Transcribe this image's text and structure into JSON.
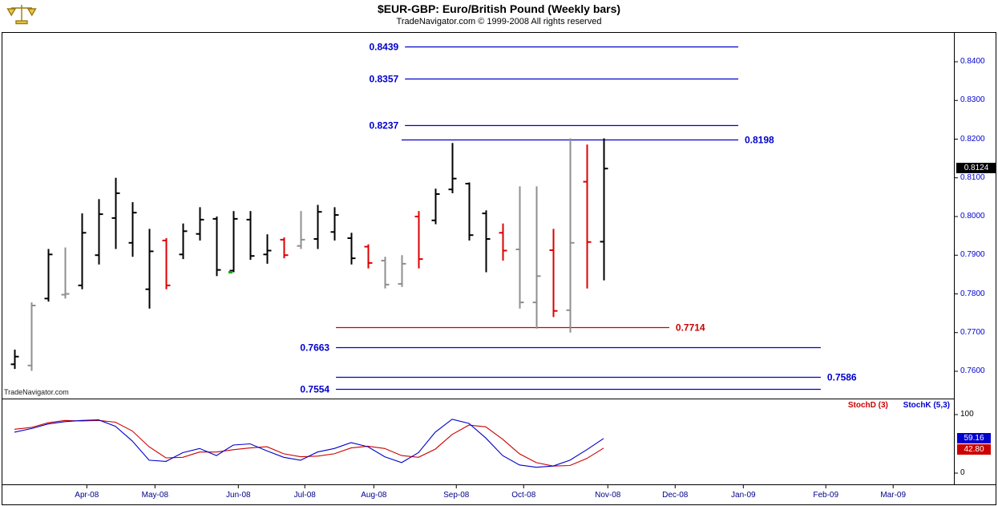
{
  "header": {
    "title": "$EUR-GBP:  Euro/British Pound  (Weekly bars)",
    "subtitle": "TradeNavigator.com © 1999-2008 All rights reserved"
  },
  "watermark": "TradeNavigator.com",
  "price_axis": {
    "text_color": "#0000cc",
    "ticks": [
      "0.8400",
      "0.8300",
      "0.8200",
      "0.8100",
      "0.8000",
      "0.7900",
      "0.7800",
      "0.7700",
      "0.7600"
    ],
    "current_price": "0.8124",
    "current_price_bg": "#000000",
    "current_price_fg": "#ffffff"
  },
  "time_axis": {
    "text_color": "#00008b",
    "labels": [
      {
        "label": "Apr-08",
        "pos": 4.3
      },
      {
        "label": "May-08",
        "pos": 8.35
      },
      {
        "label": "Jun-08",
        "pos": 13.3
      },
      {
        "label": "Jul-08",
        "pos": 17.25
      },
      {
        "label": "Aug-08",
        "pos": 21.35
      },
      {
        "label": "Sep-08",
        "pos": 26.25
      },
      {
        "label": "Oct-08",
        "pos": 30.25
      },
      {
        "label": "Nov-08",
        "pos": 35.25
      },
      {
        "label": "Dec-08",
        "pos": 39.25
      },
      {
        "label": "Jan-09",
        "pos": 43.3
      },
      {
        "label": "Feb-09",
        "pos": 48.2
      },
      {
        "label": "Mar-09",
        "pos": 52.2
      }
    ]
  },
  "indicator_panel": {
    "legend": [
      {
        "label": "StochD (3)",
        "color": "#cc0000"
      },
      {
        "label": "StochK (5,3)",
        "color": "#0000cc"
      }
    ],
    "axis_ticks": [
      "100",
      "0"
    ],
    "value_boxes": [
      {
        "series": "StochK",
        "value": "59.16",
        "bg": "#0000cc"
      },
      {
        "series": "StochD",
        "value": "42.80",
        "bg": "#cc0000"
      }
    ]
  },
  "chart_data": [
    {
      "type": "bar",
      "subtype": "ohlc-bars",
      "title": "$EUR-GBP Euro/British Pound (Weekly bars)",
      "timeframe": "weekly",
      "ylim": [
        0.753,
        0.8477
      ],
      "yticks": [
        0.84,
        0.83,
        0.82,
        0.81,
        0.8,
        0.79,
        0.78,
        0.77,
        0.76
      ],
      "last_price": 0.8124,
      "palette": {
        "black": "#000000",
        "red": "#dd0000",
        "gray": "#8f8f8f"
      },
      "bars_format": [
        "open",
        "high",
        "low",
        "close",
        "color"
      ],
      "bars": [
        [
          0.7618,
          0.7656,
          0.7606,
          0.7638,
          "black"
        ],
        [
          0.7615,
          0.7778,
          0.7601,
          0.777,
          "gray"
        ],
        [
          0.7788,
          0.7916,
          0.778,
          0.7902,
          "black"
        ],
        [
          0.7798,
          0.792,
          0.7788,
          0.78,
          "gray"
        ],
        [
          0.7822,
          0.8008,
          0.7812,
          0.7958,
          "black"
        ],
        [
          0.79,
          0.8045,
          0.7876,
          0.8006,
          "black"
        ],
        [
          0.7996,
          0.81,
          0.7916,
          0.806,
          "black"
        ],
        [
          0.7932,
          0.8037,
          0.7896,
          0.801,
          "black"
        ],
        [
          0.7812,
          0.7968,
          0.7762,
          0.791,
          "black"
        ],
        [
          0.7938,
          0.7944,
          0.7812,
          0.7822,
          "red"
        ],
        [
          0.7902,
          0.7982,
          0.789,
          0.7962,
          "black"
        ],
        [
          0.7955,
          0.8024,
          0.7938,
          0.7992,
          "black"
        ],
        [
          0.7994,
          0.8,
          0.7846,
          0.7862,
          "black"
        ],
        [
          0.786,
          0.8014,
          0.7856,
          0.7994,
          "black"
        ],
        [
          0.7992,
          0.8014,
          0.7888,
          0.7898,
          "black"
        ],
        [
          0.7902,
          0.7954,
          0.7878,
          0.7912,
          "black"
        ],
        [
          0.794,
          0.7946,
          0.7892,
          0.79,
          "red"
        ],
        [
          0.7924,
          0.8014,
          0.7916,
          0.794,
          "gray"
        ],
        [
          0.7942,
          0.803,
          0.7916,
          0.8012,
          "black"
        ],
        [
          0.796,
          0.8024,
          0.7938,
          0.8004,
          "black"
        ],
        [
          0.7944,
          0.7958,
          0.7876,
          0.7892,
          "black"
        ],
        [
          0.7922,
          0.7928,
          0.7866,
          0.788,
          "red"
        ],
        [
          0.7886,
          0.7896,
          0.7814,
          0.7824,
          "gray"
        ],
        [
          0.7826,
          0.79,
          0.7818,
          0.7878,
          "gray"
        ],
        [
          0.8,
          0.8014,
          0.7866,
          0.789,
          "red"
        ],
        [
          0.799,
          0.8072,
          0.798,
          0.8058,
          "black"
        ],
        [
          0.807,
          0.819,
          0.806,
          0.8098,
          "black"
        ],
        [
          0.8085,
          0.8088,
          0.7938,
          0.7952,
          "black"
        ],
        [
          0.8008,
          0.8016,
          0.7856,
          0.7942,
          "black"
        ],
        [
          0.7958,
          0.7982,
          0.7886,
          0.7912,
          "red"
        ],
        [
          0.7915,
          0.8078,
          0.7762,
          0.7778,
          "gray"
        ],
        [
          0.7778,
          0.8078,
          0.771,
          0.7846,
          "gray"
        ],
        [
          0.7913,
          0.7968,
          0.774,
          0.7756,
          "red"
        ],
        [
          0.7758,
          0.8202,
          0.77,
          0.7932,
          "gray"
        ],
        [
          0.809,
          0.8186,
          0.7814,
          0.7934,
          "red"
        ],
        [
          0.7935,
          0.8202,
          0.7835,
          0.8124,
          "black"
        ]
      ],
      "markers": [
        {
          "bar": 13,
          "price": 0.7856,
          "color": "#00b000"
        }
      ],
      "hlines": [
        {
          "price": 0.8439,
          "label": "0.8439",
          "color": "#0000cc",
          "x1": 23.2,
          "x2": 43.0,
          "side": "left"
        },
        {
          "price": 0.8357,
          "label": "0.8357",
          "color": "#0000cc",
          "x1": 23.2,
          "x2": 43.0,
          "side": "left"
        },
        {
          "price": 0.8237,
          "label": "0.8237",
          "color": "#0000cc",
          "x1": 23.2,
          "x2": 43.0,
          "side": "left"
        },
        {
          "price": 0.8198,
          "label": "0.8198",
          "color": "#0000cc",
          "x1": 23.0,
          "x2": 43.0,
          "side": "right"
        },
        {
          "price": 0.7714,
          "label": "0.7714",
          "color": "#cc0000",
          "x1": 19.1,
          "x2": 38.9,
          "side": "right"
        },
        {
          "price": 0.7663,
          "label": "0.7663",
          "color": "#0000cc",
          "x1": 19.1,
          "x2": 47.9,
          "side": "left"
        },
        {
          "price": 0.7586,
          "label": "0.7586",
          "color": "#0000cc",
          "x1": 19.1,
          "x2": 47.9,
          "side": "right"
        },
        {
          "price": 0.7554,
          "label": "0.7554",
          "color": "#0000cc",
          "x1": 19.1,
          "x2": 47.9,
          "side": "left"
        }
      ]
    },
    {
      "type": "line",
      "name": "Stochastic",
      "ylim": [
        0,
        100
      ],
      "yticks": [
        100,
        0
      ],
      "legend_position": "top-right",
      "series": [
        {
          "name": "StochD (3)",
          "color": "#cc0000",
          "last_value": 42.8,
          "values": [
            75,
            78,
            86,
            90,
            89,
            90,
            87,
            72,
            45,
            26,
            27,
            36,
            36,
            40,
            43,
            45,
            33,
            28,
            29,
            33,
            43,
            46,
            42,
            30,
            27,
            41,
            66,
            82,
            79,
            58,
            33,
            18,
            12,
            13,
            25,
            42.8
          ]
        },
        {
          "name": "StochK (5,3)",
          "color": "#0000cc",
          "last_value": 59.16,
          "values": [
            70,
            76,
            84,
            88,
            90,
            91,
            80,
            55,
            22,
            20,
            35,
            42,
            30,
            48,
            50,
            38,
            27,
            22,
            36,
            42,
            52,
            45,
            28,
            18,
            35,
            70,
            92,
            85,
            60,
            30,
            14,
            10,
            12,
            22,
            40,
            59.16
          ]
        }
      ]
    }
  ]
}
